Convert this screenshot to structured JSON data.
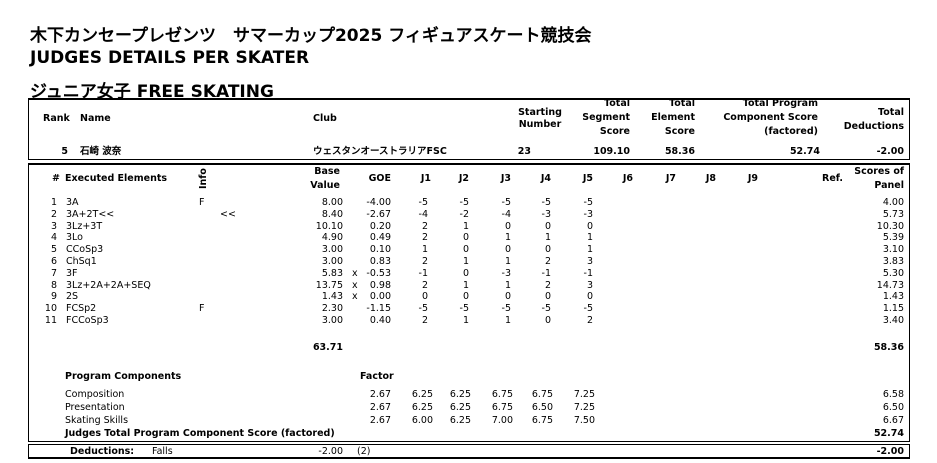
{
  "titles": [
    "木下カンセープレゼンツ　サマーカップ2025 フィギュアスケート競技会",
    "JUDGES DETAILS PER SKATER",
    "ジュニア女子 FREE SKATING"
  ],
  "skater_header": {
    "rank": "Rank",
    "name": "Name",
    "club": "Club",
    "starting_number": [
      "Starting",
      "Number"
    ],
    "tss": [
      "Total",
      "Segment",
      "Score"
    ],
    "tes": [
      "Total",
      "Element",
      "Score"
    ],
    "pcs": [
      "Total Program",
      "Component Score",
      "(factored)"
    ],
    "ded": [
      "Total",
      "Deductions"
    ]
  },
  "skater": {
    "rank": "5",
    "name": "石崎 波奈",
    "club": "ウェスタンオーストラリアFSC",
    "starting_number": "23",
    "tss": "109.10",
    "tes": "58.36",
    "pcs": "52.74",
    "ded": "-2.00"
  },
  "elements_header": {
    "num": "#",
    "name": "Executed Elements",
    "info": "Info",
    "base": [
      "Base",
      "Value"
    ],
    "goe": "GOE",
    "judges": [
      "J1",
      "J2",
      "J3",
      "J4",
      "J5",
      "J6",
      "J7",
      "J8",
      "J9"
    ],
    "ref": "Ref.",
    "score": [
      "Scores of",
      "Panel"
    ]
  },
  "elements": [
    {
      "n": "1",
      "name": "3A",
      "info": "F",
      "mark": "",
      "base": "8.00",
      "x": "",
      "goe": "-4.00",
      "j": [
        "-5",
        "-5",
        "-5",
        "-5",
        "-5"
      ],
      "score": "4.00"
    },
    {
      "n": "2",
      "name": "3A+2T<<",
      "info": "",
      "mark": "<<",
      "base": "8.40",
      "x": "",
      "goe": "-2.67",
      "j": [
        "-4",
        "-2",
        "-4",
        "-3",
        "-3"
      ],
      "score": "5.73"
    },
    {
      "n": "3",
      "name": "3Lz+3T",
      "info": "",
      "mark": "",
      "base": "10.10",
      "x": "",
      "goe": "0.20",
      "j": [
        "2",
        "1",
        "0",
        "0",
        "0"
      ],
      "score": "10.30"
    },
    {
      "n": "4",
      "name": "3Lo",
      "info": "",
      "mark": "",
      "base": "4.90",
      "x": "",
      "goe": "0.49",
      "j": [
        "2",
        "0",
        "1",
        "1",
        "1"
      ],
      "score": "5.39"
    },
    {
      "n": "5",
      "name": "CCoSp3",
      "info": "",
      "mark": "",
      "base": "3.00",
      "x": "",
      "goe": "0.10",
      "j": [
        "1",
        "0",
        "0",
        "0",
        "1"
      ],
      "score": "3.10"
    },
    {
      "n": "6",
      "name": "ChSq1",
      "info": "",
      "mark": "",
      "base": "3.00",
      "x": "",
      "goe": "0.83",
      "j": [
        "2",
        "1",
        "1",
        "2",
        "3"
      ],
      "score": "3.83"
    },
    {
      "n": "7",
      "name": "3F",
      "info": "",
      "mark": "",
      "base": "5.83",
      "x": "x",
      "goe": "-0.53",
      "j": [
        "-1",
        "0",
        "-3",
        "-1",
        "-1"
      ],
      "score": "5.30"
    },
    {
      "n": "8",
      "name": "3Lz+2A+2A+SEQ",
      "info": "",
      "mark": "",
      "base": "13.75",
      "x": "x",
      "goe": "0.98",
      "j": [
        "2",
        "1",
        "1",
        "2",
        "3"
      ],
      "score": "14.73"
    },
    {
      "n": "9",
      "name": "2S",
      "info": "",
      "mark": "",
      "base": "1.43",
      "x": "x",
      "goe": "0.00",
      "j": [
        "0",
        "0",
        "0",
        "0",
        "0"
      ],
      "score": "1.43"
    },
    {
      "n": "10",
      "name": "FCSp2",
      "info": "F",
      "mark": "",
      "base": "2.30",
      "x": "",
      "goe": "-1.15",
      "j": [
        "-5",
        "-5",
        "-5",
        "-5",
        "-5"
      ],
      "score": "1.15"
    },
    {
      "n": "11",
      "name": "FCCoSp3",
      "info": "",
      "mark": "",
      "base": "3.00",
      "x": "",
      "goe": "0.40",
      "j": [
        "2",
        "1",
        "1",
        "0",
        "2"
      ],
      "score": "3.40"
    }
  ],
  "elements_total": {
    "base": "63.71",
    "score": "58.36"
  },
  "components_header": {
    "label": "Program Components",
    "factor": "Factor"
  },
  "components": [
    {
      "name": "Composition",
      "factor": "2.67",
      "j": [
        "6.25",
        "6.25",
        "6.75",
        "6.75",
        "7.25"
      ],
      "score": "6.58"
    },
    {
      "name": "Presentation",
      "factor": "2.67",
      "j": [
        "6.25",
        "6.25",
        "6.75",
        "6.50",
        "7.25"
      ],
      "score": "6.50"
    },
    {
      "name": "Skating Skills",
      "factor": "2.67",
      "j": [
        "6.00",
        "6.25",
        "7.00",
        "6.75",
        "7.50"
      ],
      "score": "6.67"
    }
  ],
  "components_total": {
    "label": "Judges Total Program Component Score (factored)",
    "score": "52.74"
  },
  "deductions": {
    "label": "Deductions:",
    "type": "Falls",
    "value": "-2.00",
    "count": "(2)",
    "total": "-2.00"
  }
}
